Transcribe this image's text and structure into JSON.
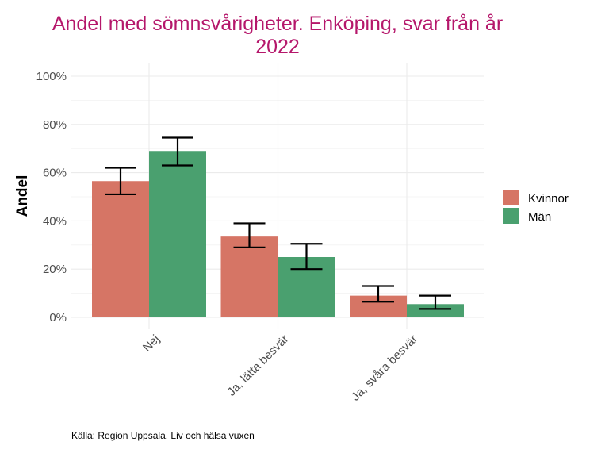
{
  "chart_data": {
    "type": "bar",
    "title_lines": [
      "Andel med sömnsvårigheter. Enköping, svar från år",
      "2022"
    ],
    "ylabel": "Andel",
    "xlabel": "",
    "categories": [
      "Nej",
      "Ja, lätta besvär",
      "Ja, svåra besvär"
    ],
    "series": [
      {
        "name": "Kvinnor",
        "color": "#d67565",
        "values": [
          56.5,
          33.5,
          9.0
        ],
        "ci_low": [
          51.0,
          29.0,
          6.5
        ],
        "ci_high": [
          62.0,
          39.0,
          13.0
        ]
      },
      {
        "name": "Män",
        "color": "#4aa06f",
        "values": [
          69.0,
          25.0,
          5.5
        ],
        "ci_low": [
          63.0,
          20.0,
          3.5
        ],
        "ci_high": [
          74.5,
          30.5,
          9.0
        ]
      }
    ],
    "ylim": [
      0,
      100
    ],
    "yticks": [
      0,
      20,
      40,
      60,
      80,
      100
    ],
    "ytick_labels": [
      "0%",
      "20%",
      "40%",
      "60%",
      "80%",
      "100%"
    ],
    "grid": true,
    "legend_position": "right",
    "caption": "Källa: Region Uppsala, Liv och hälsa vuxen"
  }
}
